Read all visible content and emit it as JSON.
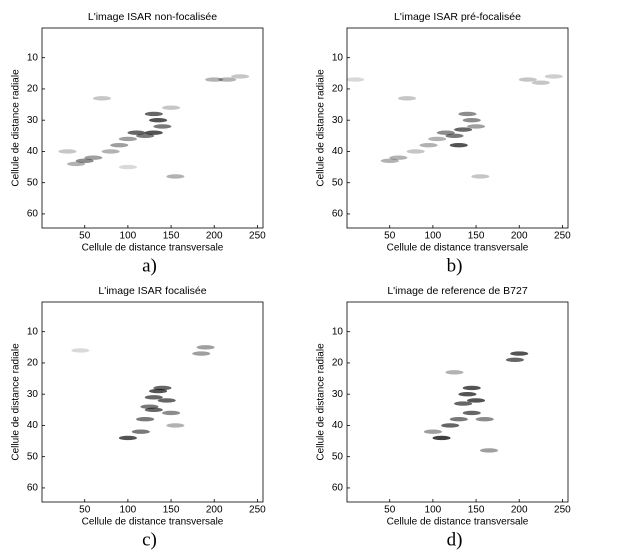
{
  "chart_data": [
    {
      "type": "image",
      "title": "L'image ISAR non-focalisée",
      "xlabel": "Cellule de distance transversale",
      "ylabel": "Cellule de distance radiale",
      "panel_label": "a)",
      "xlim": [
        0.5,
        256.5
      ],
      "ylim": [
        0.5,
        64.5
      ],
      "y_reversed": true,
      "xticks": [
        50,
        100,
        150,
        200,
        250
      ],
      "yticks": [
        10,
        20,
        30,
        40,
        50,
        60
      ],
      "x": [
        200,
        215,
        230,
        130,
        135,
        140,
        120,
        110,
        100,
        90,
        80,
        60,
        50,
        40,
        70,
        130,
        155,
        30,
        150,
        100
      ],
      "y": [
        17,
        17,
        16,
        28,
        30,
        32,
        35,
        34,
        36,
        38,
        40,
        42,
        43,
        44,
        23,
        34,
        48,
        40,
        26,
        45
      ],
      "values": [
        0.4,
        0.4,
        0.3,
        0.8,
        0.9,
        0.7,
        0.7,
        0.8,
        0.5,
        0.5,
        0.4,
        0.5,
        0.6,
        0.4,
        0.3,
        0.9,
        0.4,
        0.3,
        0.3,
        0.2
      ]
    },
    {
      "type": "image",
      "title": "L'image ISAR pré-focalisée",
      "xlabel": "Cellule de distance transversale",
      "ylabel": "Cellule de distance radiale",
      "panel_label": "b)",
      "xlim": [
        0.5,
        256.5
      ],
      "ylim": [
        0.5,
        64.5
      ],
      "y_reversed": true,
      "xticks": [
        50,
        100,
        150,
        200,
        250
      ],
      "yticks": [
        10,
        20,
        30,
        40,
        50,
        60
      ],
      "x": [
        210,
        225,
        240,
        140,
        145,
        150,
        125,
        115,
        105,
        95,
        80,
        60,
        50,
        70,
        130,
        155,
        10,
        135
      ],
      "y": [
        17,
        18,
        16,
        28,
        30,
        32,
        35,
        34,
        36,
        38,
        40,
        42,
        43,
        23,
        38,
        48,
        17,
        33
      ],
      "values": [
        0.3,
        0.3,
        0.25,
        0.6,
        0.6,
        0.5,
        0.7,
        0.6,
        0.4,
        0.4,
        0.3,
        0.4,
        0.4,
        0.3,
        0.9,
        0.3,
        0.2,
        0.8
      ]
    },
    {
      "type": "image",
      "title": "L'image ISAR focalisée",
      "xlabel": "Cellule de distance transversale",
      "ylabel": "Cellule de distance radiale",
      "panel_label": "c)",
      "xlim": [
        0.5,
        256.5
      ],
      "ylim": [
        0.5,
        64.5
      ],
      "y_reversed": true,
      "xticks": [
        50,
        100,
        150,
        200,
        250
      ],
      "yticks": [
        10,
        20,
        30,
        40,
        50,
        60
      ],
      "x": [
        185,
        190,
        135,
        140,
        145,
        130,
        125,
        120,
        115,
        100,
        150,
        155,
        45,
        130
      ],
      "y": [
        17,
        15,
        29,
        28,
        32,
        35,
        34,
        38,
        42,
        44,
        36,
        40,
        16,
        31
      ],
      "values": [
        0.5,
        0.5,
        0.9,
        0.8,
        0.8,
        0.8,
        0.7,
        0.7,
        0.7,
        0.9,
        0.6,
        0.4,
        0.2,
        0.8
      ]
    },
    {
      "type": "image",
      "title": "L'image de reference de B727",
      "xlabel": "Cellule de distance transversale",
      "ylabel": "Cellule de distance radiale",
      "panel_label": "d)",
      "xlim": [
        0.5,
        256.5
      ],
      "ylim": [
        0.5,
        64.5
      ],
      "y_reversed": true,
      "xticks": [
        50,
        100,
        150,
        200,
        250
      ],
      "yticks": [
        10,
        20,
        30,
        40,
        50,
        60
      ],
      "x": [
        200,
        195,
        140,
        145,
        150,
        135,
        130,
        120,
        110,
        160,
        165,
        100,
        125,
        145
      ],
      "y": [
        17,
        19,
        30,
        28,
        32,
        33,
        38,
        40,
        44,
        38,
        48,
        42,
        23,
        36
      ],
      "values": [
        0.9,
        0.8,
        0.9,
        0.9,
        0.9,
        0.8,
        0.7,
        0.8,
        1,
        0.6,
        0.5,
        0.5,
        0.4,
        0.8
      ]
    }
  ]
}
